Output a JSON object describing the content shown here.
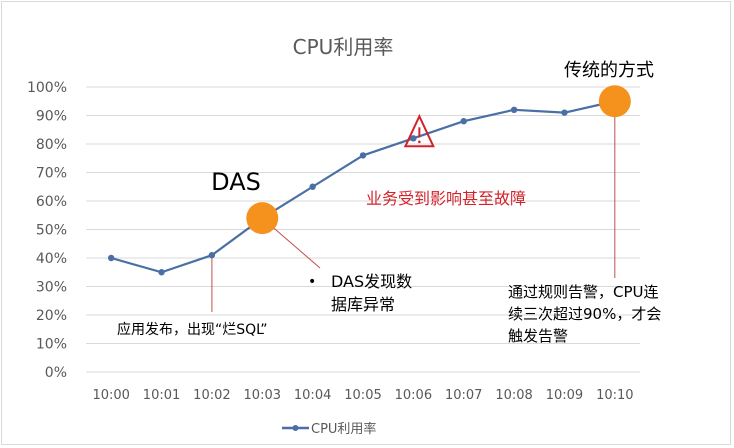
{
  "chart_data": {
    "type": "line",
    "title": "CPU利用率",
    "categories": [
      "10:00",
      "10:01",
      "10:02",
      "10:03",
      "10:04",
      "10:05",
      "10:06",
      "10:07",
      "10:08",
      "10:09",
      "10:10"
    ],
    "series": [
      {
        "name": "CPU利用率",
        "values": [
          40,
          35,
          41,
          54,
          65,
          76,
          82,
          88,
          92,
          91,
          95
        ]
      }
    ],
    "ylim": [
      0,
      100
    ],
    "yticks": [
      "0%",
      "10%",
      "20%",
      "30%",
      "40%",
      "50%",
      "60%",
      "70%",
      "80%",
      "90%",
      "100%"
    ],
    "grid": true,
    "legend": "bottom",
    "colors": {
      "line": "#4a6fa5",
      "marker": "#f5921e",
      "warning": "#d2232a",
      "grid": "#d9d9d9",
      "callout": "#c0504d"
    },
    "annotations": {
      "das_label": "DAS",
      "traditional_label": "传统的方式",
      "impact_label": "业务受到影响甚至故障",
      "release_label": "应用发布，出现“烂SQL”",
      "das_found_bullet": "•",
      "das_found_line1": "DAS发现数",
      "das_found_line2": "据库异常",
      "alert_line1": "通过规则告警，CPU连",
      "alert_line2": "续三次超过90%，才会",
      "alert_line3": "触发告警"
    }
  }
}
